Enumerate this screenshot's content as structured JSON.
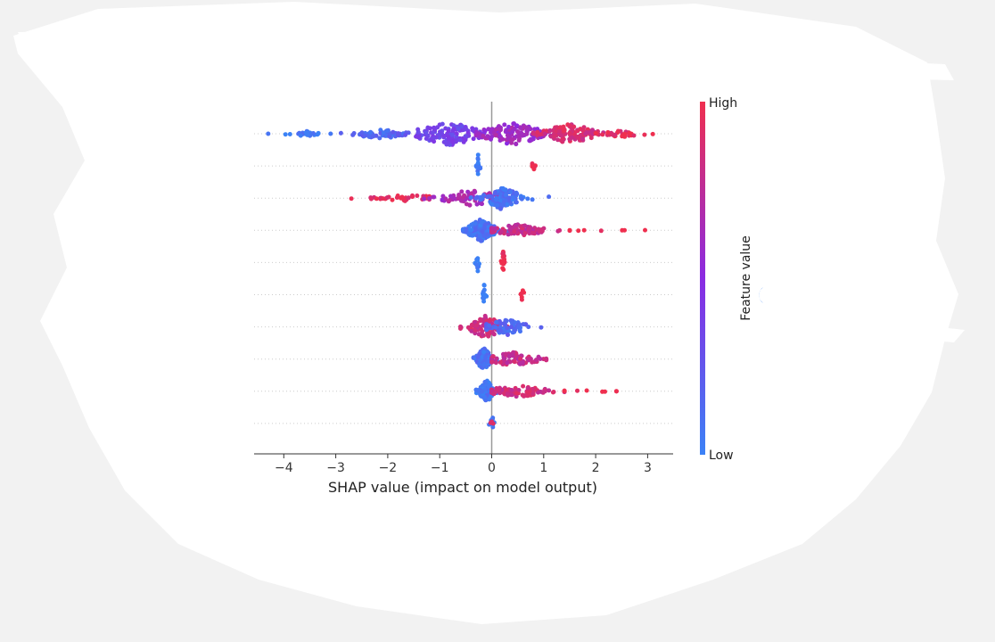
{
  "colors": {
    "low": "#3b82f6",
    "mid": "#8a2be2",
    "high": "#ef2f4f",
    "zero_line": "#999999",
    "axis": "#333333",
    "background": "#f2f2f2",
    "card": "#ffffff"
  },
  "chart_data": {
    "type": "scatter",
    "subtype": "shap-beeswarm",
    "title": "",
    "xlabel": "SHAP value (impact on model output)",
    "ylabel": "",
    "xlim": [
      -4.6,
      3.5
    ],
    "xticks": [
      -4,
      -3,
      -2,
      -1,
      0,
      1,
      2,
      3
    ],
    "xtick_labels": [
      "−4",
      "−3",
      "−2",
      "−1",
      "0",
      "1",
      "2",
      "3"
    ],
    "grid": false,
    "legend": "colorbar-right",
    "colorbar": {
      "label": "Feature value",
      "high_label": "High",
      "low_label": "Low"
    },
    "features": [
      {
        "clusters": [
          {
            "min": -4.3,
            "max": -3.1,
            "center": -3.6,
            "sd": 0.2,
            "count": 26,
            "spread": 0.25,
            "color": 0.05
          },
          {
            "min": -2.9,
            "max": -1.6,
            "center": -2.1,
            "sd": 0.3,
            "count": 55,
            "spread": 0.45,
            "color": 0.15
          },
          {
            "min": -1.8,
            "max": 0.1,
            "center": -0.8,
            "sd": 0.4,
            "count": 130,
            "spread": 1.0,
            "color": 0.35
          },
          {
            "min": -0.3,
            "max": 1.2,
            "center": 0.4,
            "sd": 0.35,
            "count": 140,
            "spread": 1.0,
            "color": 0.6
          },
          {
            "min": 0.8,
            "max": 2.3,
            "center": 1.5,
            "sd": 0.3,
            "count": 120,
            "spread": 0.9,
            "color": 0.88
          },
          {
            "min": 2.0,
            "max": 3.1,
            "center": 2.5,
            "sd": 0.25,
            "count": 30,
            "spread": 0.3,
            "color": 0.95
          }
        ]
      },
      {
        "clusters": [
          {
            "min": -0.3,
            "max": -0.22,
            "center": -0.26,
            "sd": 0.02,
            "count": 14,
            "spread": 1.0,
            "color": 0.0
          },
          {
            "min": 0.78,
            "max": 0.84,
            "center": 0.81,
            "sd": 0.02,
            "count": 6,
            "spread": 0.5,
            "color": 1.0
          }
        ]
      },
      {
        "clusters": [
          {
            "min": -2.7,
            "max": -1.2,
            "center": -1.6,
            "sd": 0.4,
            "count": 40,
            "spread": 0.3,
            "color": 0.95
          },
          {
            "min": -1.3,
            "max": 0.2,
            "center": -0.4,
            "sd": 0.35,
            "count": 70,
            "spread": 0.7,
            "color": 0.65
          },
          {
            "min": -0.4,
            "max": 1.1,
            "center": 0.2,
            "sd": 0.2,
            "count": 120,
            "spread": 1.0,
            "color": 0.1
          }
        ]
      },
      {
        "clusters": [
          {
            "min": -0.55,
            "max": 0.3,
            "center": -0.2,
            "sd": 0.15,
            "count": 170,
            "spread": 1.0,
            "color": 0.08
          },
          {
            "min": 0.0,
            "max": 1.5,
            "center": 0.5,
            "sd": 0.35,
            "count": 90,
            "spread": 0.5,
            "color": 0.8
          },
          {
            "min": 1.5,
            "max": 2.95,
            "center": 2.0,
            "sd": 0.4,
            "count": 8,
            "spread": 0.1,
            "color": 1.0
          }
        ]
      },
      {
        "clusters": [
          {
            "min": -0.32,
            "max": -0.24,
            "center": -0.28,
            "sd": 0.02,
            "count": 10,
            "spread": 1.0,
            "color": 0.0
          },
          {
            "min": 0.18,
            "max": 0.25,
            "center": 0.22,
            "sd": 0.02,
            "count": 14,
            "spread": 1.0,
            "color": 1.0
          }
        ]
      },
      {
        "clusters": [
          {
            "min": -0.17,
            "max": -0.1,
            "center": -0.14,
            "sd": 0.02,
            "count": 12,
            "spread": 1.0,
            "color": 0.0
          },
          {
            "min": 0.56,
            "max": 0.62,
            "center": 0.59,
            "sd": 0.02,
            "count": 6,
            "spread": 0.6,
            "color": 1.0
          }
        ]
      },
      {
        "clusters": [
          {
            "min": -0.6,
            "max": 0.3,
            "center": -0.1,
            "sd": 0.2,
            "count": 90,
            "spread": 1.0,
            "color": 0.85
          },
          {
            "min": -0.1,
            "max": 0.95,
            "center": 0.3,
            "sd": 0.25,
            "count": 70,
            "spread": 0.7,
            "color": 0.15
          }
        ]
      },
      {
        "clusters": [
          {
            "min": -0.35,
            "max": 0.1,
            "center": -0.15,
            "sd": 0.08,
            "count": 110,
            "spread": 1.0,
            "color": 0.08
          },
          {
            "min": 0.0,
            "max": 1.05,
            "center": 0.4,
            "sd": 0.3,
            "count": 90,
            "spread": 0.6,
            "color": 0.8
          }
        ]
      },
      {
        "clusters": [
          {
            "min": -0.3,
            "max": 0.2,
            "center": -0.1,
            "sd": 0.08,
            "count": 100,
            "spread": 1.0,
            "color": 0.08
          },
          {
            "min": 0.0,
            "max": 1.4,
            "center": 0.5,
            "sd": 0.35,
            "count": 80,
            "spread": 0.5,
            "color": 0.85
          },
          {
            "min": 1.4,
            "max": 2.4,
            "center": 1.9,
            "sd": 0.35,
            "count": 8,
            "spread": 0.1,
            "color": 1.0
          }
        ]
      },
      {
        "clusters": [
          {
            "min": -0.05,
            "max": 0.05,
            "center": 0.0,
            "sd": 0.02,
            "count": 10,
            "spread": 1.0,
            "color": 0.0
          },
          {
            "min": -0.02,
            "max": 0.03,
            "center": 0.0,
            "sd": 0.01,
            "count": 3,
            "spread": 0.4,
            "color": 1.0
          }
        ]
      }
    ]
  }
}
